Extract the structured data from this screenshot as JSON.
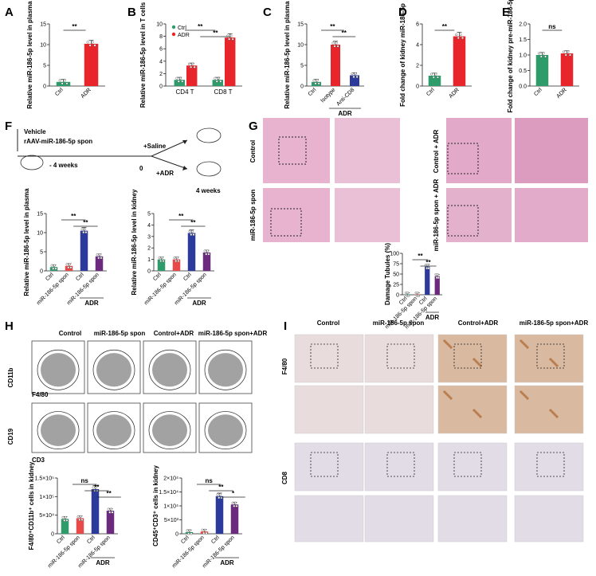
{
  "panels": {
    "A": {
      "letter": "A",
      "ylabel": "Relative miR-186-5p level in plasma",
      "yticks": [
        "0",
        "5",
        "10",
        "15"
      ],
      "categories": [
        "Ctrl",
        "ADR"
      ],
      "sig": "**"
    },
    "B": {
      "letter": "B",
      "ylabel": "Relative miR-186-5p level in T cells",
      "legend": [
        "Ctrl",
        "ADR"
      ],
      "yticks": [
        "0",
        "2",
        "4",
        "6",
        "8",
        "10"
      ],
      "categories": [
        "CD4 T",
        "CD8 T"
      ],
      "sig": [
        "**",
        "**"
      ]
    },
    "C": {
      "letter": "C",
      "ylabel": "Relative miR-186-5p level in plasma",
      "yticks": [
        "0",
        "5",
        "10",
        "15"
      ],
      "categories": [
        "Ctrl",
        "Isotype",
        "Anti-CD8"
      ],
      "group_label": "ADR",
      "sig": [
        "**",
        "**"
      ]
    },
    "D": {
      "letter": "D",
      "ylabel": "Fold change of kidney miR-186-5p",
      "yticks": [
        "0",
        "2",
        "4",
        "6"
      ],
      "categories": [
        "Ctrl",
        "ADR"
      ],
      "sig": "**"
    },
    "E": {
      "letter": "E",
      "ylabel": "Fold change of kidney pre-miR-186-5p",
      "yticks": [
        "0.0",
        "0.5",
        "1.0",
        "1.5",
        "2.0"
      ],
      "categories": [
        "Ctrl",
        "ADR"
      ],
      "sig": "ns"
    },
    "F": {
      "letter": "F",
      "vehicle": "Vehicle",
      "construct": "rAAV-miR-186-5p spon",
      "weeks_before": "- 4 weeks",
      "zero": "0",
      "saline": "+Saline",
      "adr": "+ADR",
      "weeks_after": "4 weeks",
      "plasma": {
        "ylabel": "Relative miR-186-5p level in plasma",
        "yticks": [
          "0",
          "5",
          "10",
          "15"
        ],
        "categories": [
          "Ctrl",
          "miR-186-5p spon",
          "Ctrl",
          "miR-186-5p spon"
        ],
        "group_label": "ADR",
        "sig": [
          "**",
          "**"
        ]
      },
      "kidney": {
        "ylabel": "Relative miR-186-5p level in kidney",
        "yticks": [
          "0",
          "1",
          "2",
          "3",
          "4",
          "5"
        ],
        "categories": [
          "Ctrl",
          "miR-186-5p spon",
          "Ctrl",
          "miR-186-5p spon"
        ],
        "group_label": "ADR",
        "sig": [
          "**",
          "**"
        ]
      }
    },
    "G": {
      "letter": "G",
      "rows": [
        "Control",
        "miR-186-5p spon"
      ],
      "rows_right": [
        "Control + ADR",
        "miR-186-5p spon + ADR"
      ],
      "inset": {
        "ylabel": "Damage Tubules (%)",
        "yticks": [
          "0",
          "25",
          "50",
          "75",
          "100"
        ],
        "categories": [
          "Ctrl",
          "miR-186-5p spon",
          "Ctrl",
          "miR-186-5p spon"
        ],
        "group_label": "ADR",
        "sig": [
          "**",
          "**"
        ]
      }
    },
    "H": {
      "letter": "H",
      "columns": [
        "Control",
        "miR-186-5p spon",
        "Control+ADR",
        "miR-186-5p spon+ADR"
      ],
      "row1": {
        "y": "CD11b",
        "x": "F4/80"
      },
      "row2": {
        "y": "CD19",
        "x": "CD3"
      },
      "bar1": {
        "ylabel": "F4/80⁺CD11b⁺ cells in kidney",
        "yticks": [
          "0",
          "5×10⁴",
          "1×10⁵",
          "1.5×10⁵"
        ],
        "categories": [
          "Ctrl",
          "miR-186-5p spon",
          "Ctrl",
          "miR-186-5p spon"
        ],
        "group_label": "ADR",
        "sig": [
          "ns",
          "**",
          "**"
        ]
      },
      "bar2": {
        "ylabel": "CD45⁺CD3⁺ cells in kidney",
        "yticks": [
          "0",
          "5×10³",
          "1×10⁴",
          "1.5×10⁴",
          "2×10⁴"
        ],
        "categories": [
          "Ctrl",
          "miR-186-5p spon",
          "Ctrl",
          "miR-186-5p spon"
        ],
        "group_label": "ADR",
        "sig": [
          "ns",
          "**",
          "*"
        ]
      }
    },
    "I": {
      "letter": "I",
      "columns": [
        "Control",
        "miR-186-5p spon",
        "Control+ADR",
        "miR-186-5p spon+ADR"
      ],
      "rows": [
        "F4/80",
        "CD8"
      ]
    }
  },
  "colors": {
    "ctrl": "#2e9b6a",
    "adr": "#e8252a",
    "blue": "#2b3a9b",
    "purple": "#6b2a7e",
    "red_light": "#e84a4a",
    "magenta": "#d81b6a",
    "he_pink": "#e7b3cf",
    "ihc_bg": "#e9e4e6",
    "ihc_brown": "#b87c4c"
  },
  "chart_data": [
    {
      "type": "bar",
      "panel": "A",
      "categories": [
        "Ctrl",
        "ADR"
      ],
      "values": [
        1.0,
        10.2
      ],
      "ylim": [
        0,
        15
      ],
      "ylabel": "Relative miR-186-5p level in plasma"
    },
    {
      "type": "bar",
      "panel": "B",
      "categories": [
        "CD4 T",
        "CD8 T"
      ],
      "series": [
        {
          "name": "Ctrl",
          "values": [
            1.0,
            1.0
          ]
        },
        {
          "name": "ADR",
          "values": [
            3.3,
            7.8
          ]
        }
      ],
      "ylim": [
        0,
        10
      ],
      "ylabel": "Relative miR-186-5p level in T cells"
    },
    {
      "type": "bar",
      "panel": "C",
      "categories": [
        "Ctrl",
        "Isotype",
        "Anti-CD8"
      ],
      "values": [
        1.0,
        10.0,
        2.6
      ],
      "ylim": [
        0,
        15
      ],
      "ylabel": "Relative miR-186-5p level in plasma"
    },
    {
      "type": "bar",
      "panel": "D",
      "categories": [
        "Ctrl",
        "ADR"
      ],
      "values": [
        1.0,
        4.8
      ],
      "ylim": [
        0,
        6
      ],
      "ylabel": "Fold change of kidney miR-186-5p"
    },
    {
      "type": "bar",
      "panel": "E",
      "categories": [
        "Ctrl",
        "ADR"
      ],
      "values": [
        1.0,
        1.05
      ],
      "ylim": [
        0,
        2
      ],
      "ylabel": "Fold change of kidney pre-miR-186-5p"
    },
    {
      "type": "bar",
      "panel": "F-plasma",
      "categories": [
        "Ctrl",
        "miR-186-5p spon",
        "Ctrl",
        "miR-186-5p spon"
      ],
      "values": [
        1.0,
        1.3,
        10.5,
        3.8
      ],
      "ylim": [
        0,
        15
      ]
    },
    {
      "type": "bar",
      "panel": "F-kidney",
      "categories": [
        "Ctrl",
        "miR-186-5p spon",
        "Ctrl",
        "miR-186-5p spon"
      ],
      "values": [
        1.0,
        1.0,
        3.3,
        1.6
      ],
      "ylim": [
        0,
        5
      ]
    },
    {
      "type": "bar",
      "panel": "G-inset",
      "categories": [
        "Ctrl",
        "miR-186-5p spon",
        "Ctrl",
        "miR-186-5p spon"
      ],
      "values": [
        1,
        1,
        68,
        45
      ],
      "ylim": [
        0,
        100
      ]
    },
    {
      "type": "bar",
      "panel": "H-1",
      "categories": [
        "Ctrl",
        "miR-186-5p spon",
        "Ctrl",
        "miR-186-5p spon"
      ],
      "values": [
        40000,
        42000,
        120000,
        62000
      ],
      "ylim": [
        0,
        150000
      ]
    },
    {
      "type": "bar",
      "panel": "H-2",
      "categories": [
        "Ctrl",
        "miR-186-5p spon",
        "Ctrl",
        "miR-186-5p spon"
      ],
      "values": [
        600,
        800,
        13500,
        10500
      ],
      "ylim": [
        0,
        20000
      ]
    }
  ]
}
